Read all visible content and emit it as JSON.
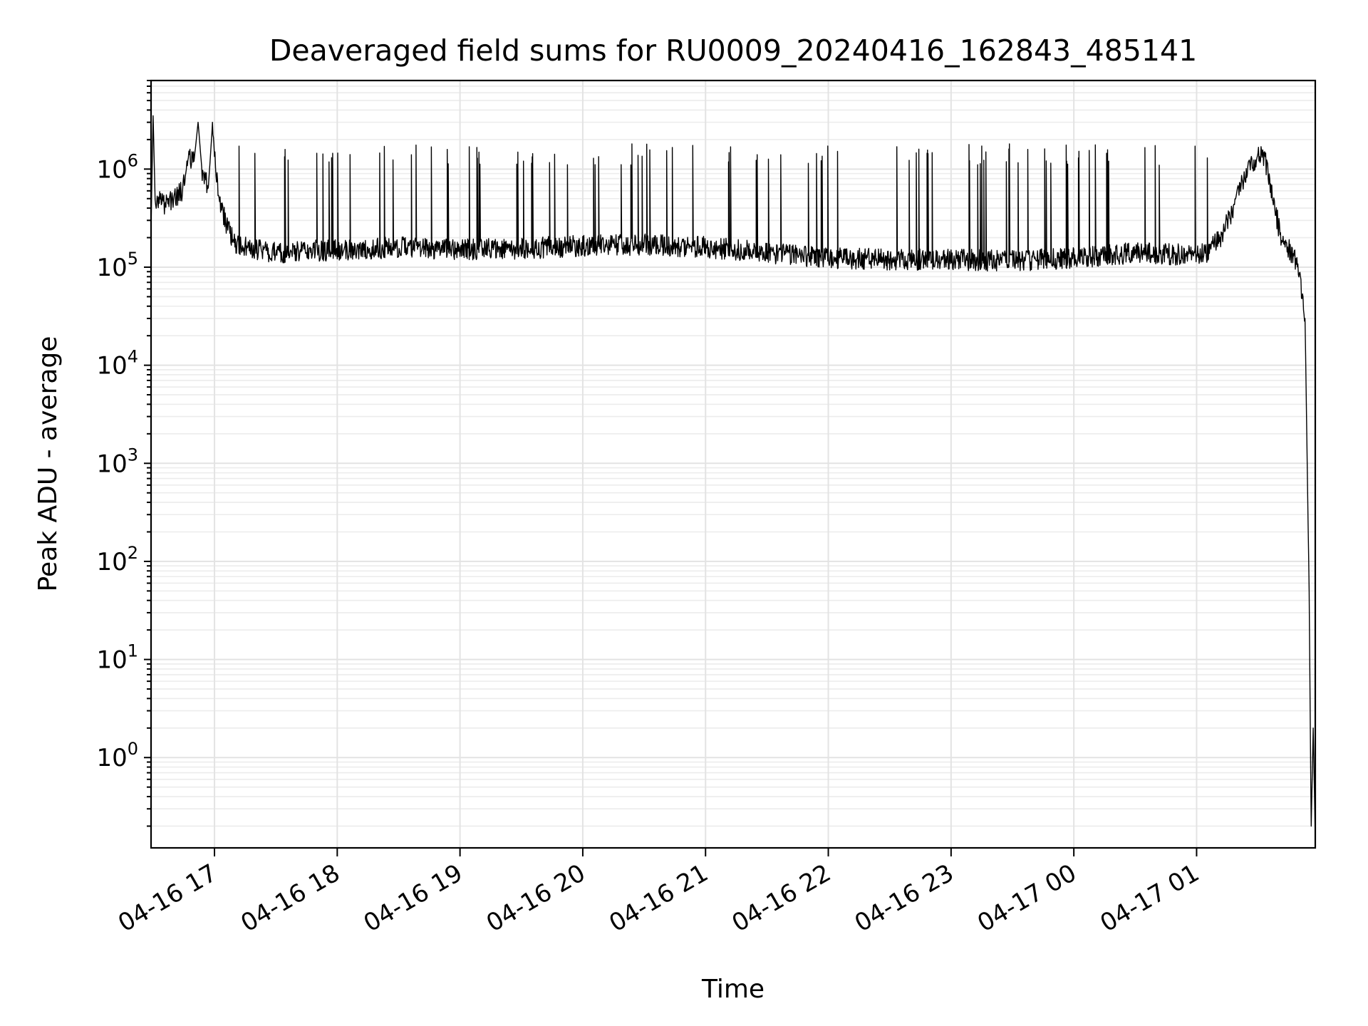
{
  "chart_data": {
    "type": "line",
    "title": "Deaveraged field sums for RU0009_20240416_162843_485141",
    "xlabel": "Time",
    "ylabel": "Peak ADU - average",
    "yscale": "log",
    "ylim": [
      0.12,
      8000000
    ],
    "xlim": [
      "2024-04-16 16:29",
      "2024-04-17 01:58"
    ],
    "grid": "major+minor",
    "x_ticks": [
      {
        "t": "2024-04-16 17:00",
        "label": "04-16 17"
      },
      {
        "t": "2024-04-16 18:00",
        "label": "04-16 18"
      },
      {
        "t": "2024-04-16 19:00",
        "label": "04-16 19"
      },
      {
        "t": "2024-04-16 20:00",
        "label": "04-16 20"
      },
      {
        "t": "2024-04-16 21:00",
        "label": "04-16 21"
      },
      {
        "t": "2024-04-16 22:00",
        "label": "04-16 22"
      },
      {
        "t": "2024-04-16 23:00",
        "label": "04-16 23"
      },
      {
        "t": "2024-04-17 00:00",
        "label": "04-17 00"
      },
      {
        "t": "2024-04-17 01:00",
        "label": "04-17 01"
      }
    ],
    "y_ticks": [
      {
        "value": 1,
        "base": "10",
        "exp": "0"
      },
      {
        "value": 10,
        "base": "10",
        "exp": "1"
      },
      {
        "value": 100,
        "base": "10",
        "exp": "2"
      },
      {
        "value": 1000,
        "base": "10",
        "exp": "3"
      },
      {
        "value": 10000,
        "base": "10",
        "exp": "4"
      },
      {
        "value": 100000,
        "base": "10",
        "exp": "5"
      },
      {
        "value": 1000000,
        "base": "10",
        "exp": "6"
      }
    ],
    "series": [
      {
        "color": "#000000",
        "points": [
          [
            "2024-04-16 16:29",
            250000
          ],
          [
            "2024-04-16 16:30",
            3500000
          ],
          [
            "2024-04-16 16:31",
            500000
          ],
          [
            "2024-04-16 16:35",
            430000
          ],
          [
            "2024-04-16 16:40",
            480000
          ],
          [
            "2024-04-16 16:44",
            600000
          ],
          [
            "2024-04-16 16:47",
            1400000
          ],
          [
            "2024-04-16 16:50",
            1200000
          ],
          [
            "2024-04-16 16:52",
            3000000
          ],
          [
            "2024-04-16 16:54",
            900000
          ],
          [
            "2024-04-16 16:57",
            650000
          ],
          [
            "2024-04-16 16:59",
            2800000
          ],
          [
            "2024-04-16 17:02",
            500000
          ],
          [
            "2024-04-16 17:06",
            260000
          ],
          [
            "2024-04-16 17:10",
            180000
          ],
          [
            "2024-04-16 17:15",
            160000
          ],
          [
            "2024-04-16 17:20",
            150000
          ],
          [
            "2024-04-16 17:30",
            140000
          ],
          [
            "2024-04-16 17:40",
            145000
          ],
          [
            "2024-04-16 18:00",
            150000
          ],
          [
            "2024-04-16 18:30",
            160000
          ],
          [
            "2024-04-16 19:00",
            150000
          ],
          [
            "2024-04-16 19:30",
            155000
          ],
          [
            "2024-04-16 20:00",
            165000
          ],
          [
            "2024-04-16 20:30",
            170000
          ],
          [
            "2024-04-16 21:00",
            160000
          ],
          [
            "2024-04-16 21:30",
            140000
          ],
          [
            "2024-04-16 22:00",
            125000
          ],
          [
            "2024-04-16 22:30",
            120000
          ],
          [
            "2024-04-16 23:00",
            120000
          ],
          [
            "2024-04-16 23:30",
            115000
          ],
          [
            "2024-04-17 00:00",
            125000
          ],
          [
            "2024-04-17 00:30",
            140000
          ],
          [
            "2024-04-17 00:50",
            135000
          ],
          [
            "2024-04-17 01:05",
            140000
          ],
          [
            "2024-04-17 01:12",
            210000
          ],
          [
            "2024-04-17 01:18",
            400000
          ],
          [
            "2024-04-17 01:22",
            700000
          ],
          [
            "2024-04-17 01:27",
            1100000
          ],
          [
            "2024-04-17 01:32",
            1600000
          ],
          [
            "2024-04-17 01:35",
            900000
          ],
          [
            "2024-04-17 01:38",
            400000
          ],
          [
            "2024-04-17 01:42",
            180000
          ],
          [
            "2024-04-17 01:47",
            135000
          ],
          [
            "2024-04-17 01:50",
            95000
          ],
          [
            "2024-04-17 01:53",
            30000
          ],
          [
            "2024-04-17 01:55",
            50
          ],
          [
            "2024-04-17 01:56",
            0.2
          ],
          [
            "2024-04-17 01:57",
            2
          ],
          [
            "2024-04-17 01:58",
            0.15
          ]
        ]
      }
    ]
  }
}
